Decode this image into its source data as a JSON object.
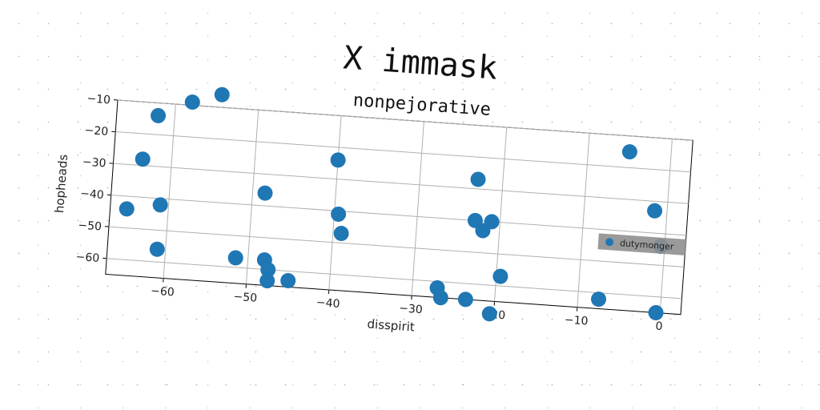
{
  "chart_data": {
    "type": "scatter",
    "title": "X immask",
    "subtitle": "nonpejorative",
    "xlabel": "disspirit",
    "ylabel": "hopheads",
    "xlim": [
      -67,
      2.5
    ],
    "ylim": [
      -65,
      -10
    ],
    "xticks": [
      -60,
      -50,
      -40,
      -30,
      -20,
      -10,
      0
    ],
    "yticks": [
      -10,
      -20,
      -30,
      -40,
      -50,
      -60
    ],
    "grid": true,
    "legend_position": "right",
    "series": [
      {
        "name": "dutymonger",
        "color": "#1f77b4",
        "points": [
          {
            "x": -54.5,
            "y": -6
          },
          {
            "x": -58,
            "y": -9
          },
          {
            "x": -62,
            "y": -14
          },
          {
            "x": -63.5,
            "y": -28
          },
          {
            "x": -65,
            "y": -44
          },
          {
            "x": -61,
            "y": -42
          },
          {
            "x": -61,
            "y": -56
          },
          {
            "x": -51.5,
            "y": -57
          },
          {
            "x": -48.5,
            "y": -36
          },
          {
            "x": -48,
            "y": -57
          },
          {
            "x": -47.5,
            "y": -60
          },
          {
            "x": -47.5,
            "y": -63.5
          },
          {
            "x": -45,
            "y": -63
          },
          {
            "x": -40,
            "y": -24
          },
          {
            "x": -39.5,
            "y": -41
          },
          {
            "x": -39,
            "y": -47
          },
          {
            "x": -27,
            "y": -62
          },
          {
            "x": -26.5,
            "y": -65
          },
          {
            "x": -23,
            "y": -27
          },
          {
            "x": -23,
            "y": -40
          },
          {
            "x": -23.5,
            "y": -65
          },
          {
            "x": -22,
            "y": -43
          },
          {
            "x": -21,
            "y": -40
          },
          {
            "x": -19.5,
            "y": -57
          },
          {
            "x": -20.5,
            "y": -69
          },
          {
            "x": -7.5,
            "y": -62
          },
          {
            "x": -5,
            "y": -15
          },
          {
            "x": -1.5,
            "y": -33
          },
          {
            "x": -0.5,
            "y": -44
          },
          {
            "x": -0.5,
            "y": -65
          }
        ]
      }
    ]
  },
  "colors": {
    "point": "#1f77b4",
    "grid": "#b0b0b0",
    "legend_bg": "#8f8f8f"
  }
}
